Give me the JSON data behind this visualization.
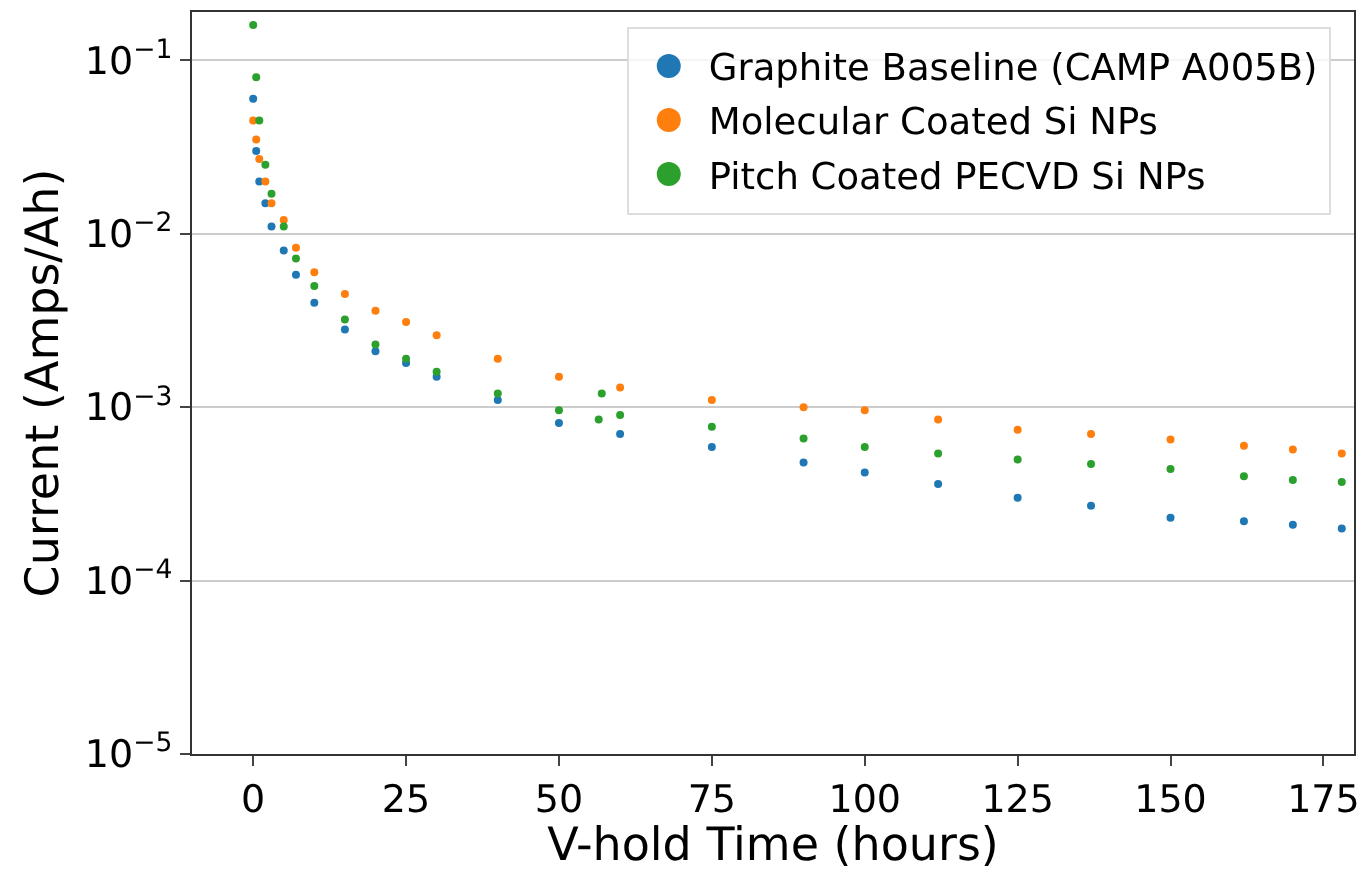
{
  "chart_data": {
    "type": "scatter",
    "xlabel": "V-hold Time (hours)",
    "ylabel": "Current (Amps/Ah)",
    "xlim": [
      -10,
      180
    ],
    "xticks": [
      0,
      25,
      50,
      75,
      100,
      125,
      150,
      175
    ],
    "ylim": [
      1e-05,
      0.19
    ],
    "yticks": [
      {
        "value": 1e-05,
        "label": "10$^{−5}$"
      },
      {
        "value": 0.0001,
        "label": "10$^{−4}$"
      },
      {
        "value": 0.001,
        "label": "10$^{−3}$"
      },
      {
        "value": 0.01,
        "label": "10$^{−2}$"
      },
      {
        "value": 0.1,
        "label": "10$^{−1}$"
      }
    ],
    "log": "y",
    "grid": "y",
    "legend": "top right",
    "marker": "circle",
    "series": [
      {
        "name": "Graphite Baseline (CAMP A005B)",
        "color": "#1f77b4",
        "x": [
          0,
          0.5,
          1,
          2,
          3,
          5,
          7,
          10,
          15,
          20,
          25,
          30,
          40,
          50,
          60,
          75,
          90,
          100,
          112,
          125,
          137,
          150,
          162,
          170,
          178
        ],
        "values": [
          0.06,
          0.03,
          0.02,
          0.015,
          0.011,
          0.008,
          0.0058,
          0.004,
          0.0028,
          0.0021,
          0.0018,
          0.0015,
          0.0011,
          0.00081,
          0.0007,
          0.00059,
          0.00048,
          0.00042,
          0.00036,
          0.0003,
          0.00027,
          0.00023,
          0.00022,
          0.00021,
          0.0002
        ]
      },
      {
        "name": "Molecular Coated Si NPs",
        "color": "#ff7f0e",
        "x": [
          0,
          0.5,
          1,
          2,
          3,
          5,
          7,
          10,
          15,
          20,
          25,
          30,
          40,
          50,
          60,
          75,
          90,
          100,
          112,
          125,
          137,
          150,
          162,
          170,
          178
        ],
        "values": [
          0.045,
          0.035,
          0.027,
          0.02,
          0.015,
          0.012,
          0.0083,
          0.006,
          0.0045,
          0.0036,
          0.0031,
          0.0026,
          0.0019,
          0.0015,
          0.0013,
          0.0011,
          0.001,
          0.00096,
          0.00085,
          0.00074,
          0.0007,
          0.00065,
          0.0006,
          0.00057,
          0.00054
        ]
      },
      {
        "name": "Pitch Coated PECVD Si NPs",
        "color": "#2ca02c",
        "x": [
          0,
          0.5,
          1,
          2,
          3,
          5,
          7,
          10,
          15,
          20,
          25,
          30,
          40,
          50,
          56.5,
          57,
          60,
          75,
          90,
          100,
          112,
          125,
          137,
          150,
          162,
          170,
          178
        ],
        "values": [
          0.16,
          0.08,
          0.045,
          0.025,
          0.017,
          0.011,
          0.0072,
          0.005,
          0.0032,
          0.0023,
          0.0019,
          0.0016,
          0.0012,
          0.00096,
          0.00085,
          0.0012,
          0.0009,
          0.00077,
          0.00066,
          0.00059,
          0.00054,
          0.0005,
          0.00047,
          0.00044,
          0.0004,
          0.00038,
          0.00037
        ]
      }
    ]
  }
}
